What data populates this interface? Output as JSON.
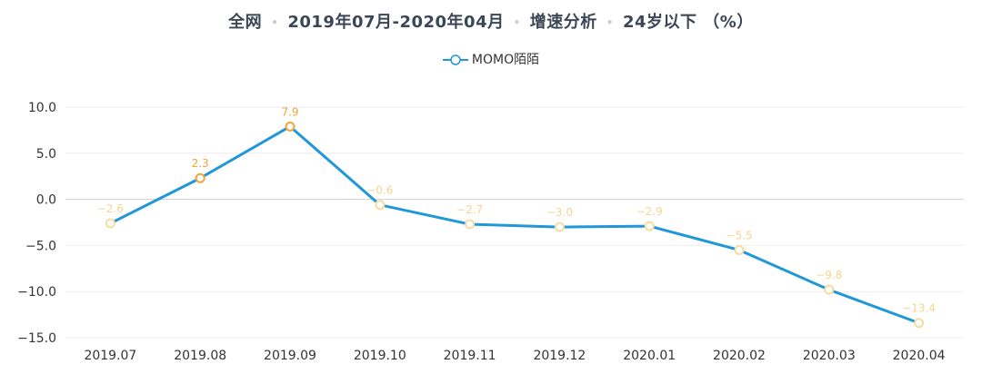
{
  "title": {
    "parts": [
      "全网",
      "2019年07月-2020年04月",
      "增速分析",
      "24岁以下 （%）"
    ],
    "separator": "•"
  },
  "colors": {
    "line": "#1f97d8",
    "marker_up": "#f0a43a",
    "marker_down": "#f5dca0",
    "label_up": "#f0a43a",
    "label_down": "#f6d68f",
    "grid": "#eeeeee",
    "zero_line": "#cfcfcf",
    "title": "#3b4656"
  },
  "chart_data": {
    "type": "line",
    "categories": [
      "2019.07",
      "2019.08",
      "2019.09",
      "2019.10",
      "2019.11",
      "2019.12",
      "2020.01",
      "2020.02",
      "2020.03",
      "2020.04"
    ],
    "series": [
      {
        "name": "MOMO陌陌",
        "values": [
          -2.6,
          2.3,
          7.9,
          -0.6,
          -2.7,
          -3.0,
          -2.9,
          -5.5,
          -9.8,
          -13.4
        ]
      }
    ],
    "data_labels": [
      "−2.6",
      "2.3",
      "7.9",
      "−0.6",
      "−2.7",
      "−3.0",
      "−2.9",
      "−5.5",
      "−9.8",
      "−13.4"
    ],
    "ylim": [
      -15,
      10
    ],
    "yticks": [
      10,
      5,
      0,
      -5,
      -10,
      -15
    ],
    "ytick_labels": [
      "10.0",
      "5.0",
      "0.0",
      "−5.0",
      "−10.0",
      "−15.0"
    ],
    "legend_position": "top-center",
    "grid": true
  }
}
